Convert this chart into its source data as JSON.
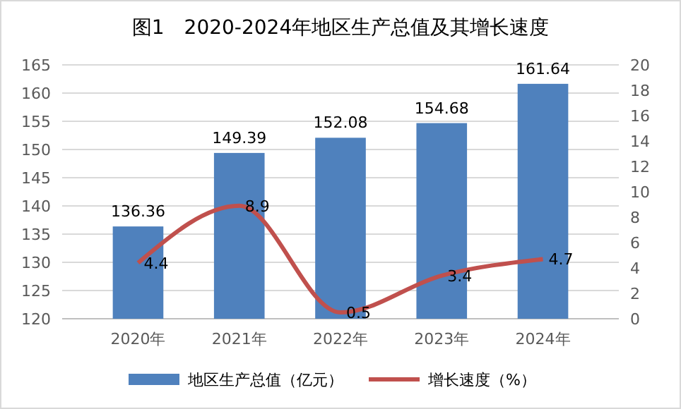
{
  "chart_data": {
    "type": "bar",
    "title": "图1　2020-2024年地区生产总值及其增长速度",
    "categories": [
      "2020年",
      "2021年",
      "2022年",
      "2023年",
      "2024年"
    ],
    "series": [
      {
        "name": "地区生产总值（亿元）",
        "color": "#4f81bd",
        "values": [
          136.36,
          149.39,
          152.08,
          154.68,
          161.64
        ]
      },
      {
        "name": "增长速度（%）",
        "type": "line",
        "axis": "y2",
        "color": "#c0504d",
        "values": [
          4.4,
          8.9,
          0.5,
          3.4,
          4.7
        ]
      }
    ],
    "ylim": [
      120,
      165
    ],
    "yticks": [
      120,
      125,
      130,
      135,
      140,
      145,
      150,
      155,
      160,
      165
    ],
    "y2lim": [
      0,
      20
    ],
    "y2ticks": [
      0,
      2,
      4,
      6,
      8,
      10,
      12,
      14,
      16,
      18,
      20
    ],
    "grid": "y",
    "legend": "bottom",
    "data_labels": true,
    "marker": "none",
    "line_style": "solid"
  }
}
